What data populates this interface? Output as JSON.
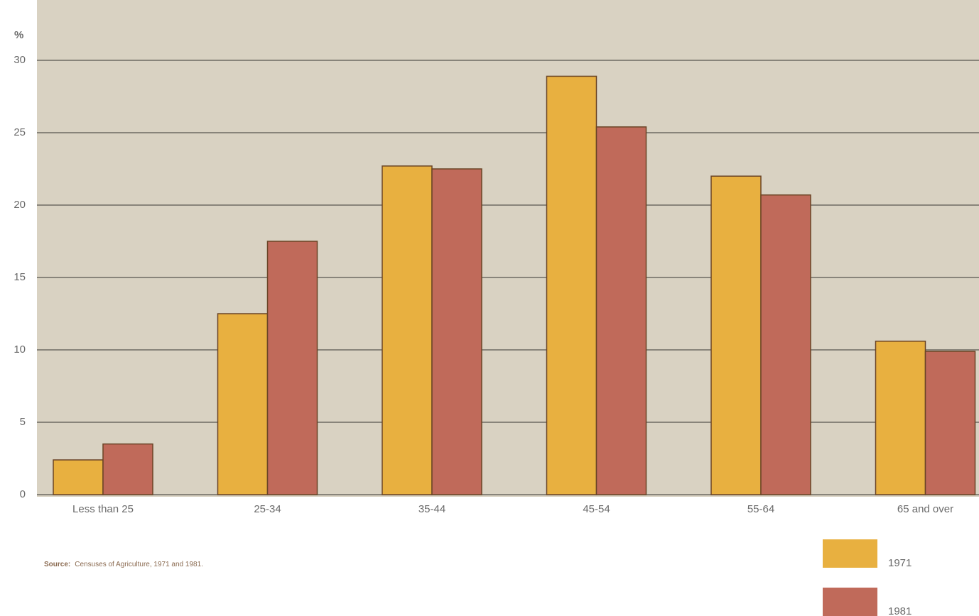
{
  "chart_data": {
    "type": "bar",
    "y_unit_label": "%",
    "categories": [
      "Less than 25",
      "25-34",
      "35-44",
      "45-54",
      "55-64",
      "65 and over"
    ],
    "series": [
      {
        "name": "1971",
        "color": "#e8b040",
        "values": [
          2.4,
          12.5,
          22.7,
          28.9,
          22.0,
          10.6
        ]
      },
      {
        "name": "1981",
        "color": "#c06a5a",
        "values": [
          3.5,
          17.5,
          22.5,
          25.4,
          20.7,
          9.9
        ]
      }
    ],
    "ylim": [
      0,
      30
    ],
    "yticks": [
      0,
      5,
      10,
      15,
      20,
      25,
      30
    ],
    "grid": true,
    "source_label": "Source:",
    "source": "Censuses of Agriculture, 1971 and 1981.",
    "legend": "bottom-right"
  }
}
